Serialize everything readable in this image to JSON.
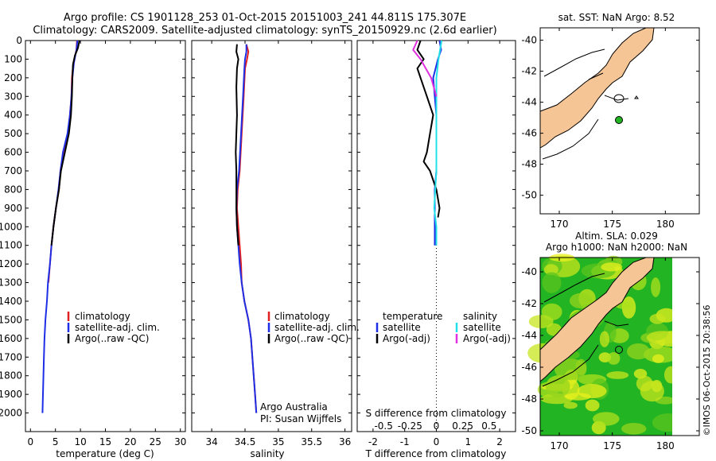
{
  "header": {
    "line1": "Argo profile: CS 1901128_253 01-Oct-2015 20151003_241 44.811S 175.307E",
    "line2": "Climatology: CARS2009. Satellite-adjusted climatology: synTS_20150929.nc (2.6d earlier)"
  },
  "colors": {
    "climatology": "#e02020",
    "satellite": "#1e2ee6",
    "argo": "#000000",
    "satellite_salinity": "#22e0e8",
    "argo_salinity": "#e030e0",
    "land": "#f5c596",
    "sea_surface": "#22b422"
  },
  "legend": {
    "climatology": "climatology",
    "satellite_clim": "satellite-adj. clim.",
    "argo_raw": "Argo(..raw -QC)",
    "temperature": "temperature",
    "salinity": "salinity",
    "satellite": "satellite",
    "argo_adj": "Argo(-adj)"
  },
  "credits": {
    "line1": "Argo Australia",
    "line2": "PI: Susan Wijffels",
    "imos": "©IMOS 06-Oct-2015 20:38:56"
  },
  "maps": {
    "sst_title": "sat. SST: NaN Argo: 8.52",
    "sla_title1": "Altim. SLA: 0.029",
    "sla_title2": "Argo h1000: NaN h2000: NaN",
    "lat_ticks": [
      "-40",
      "-42",
      "-44",
      "-46",
      "-48",
      "-50"
    ],
    "lon_ticks": [
      "170",
      "175",
      "180"
    ],
    "float_position": {
      "lon": 175.307,
      "lat": -44.811
    }
  },
  "chart_data": [
    {
      "type": "line",
      "xlabel": "temperature (deg C)",
      "ylabel": "",
      "xlim": [
        -1,
        31
      ],
      "ylim": [
        2100,
        0
      ],
      "xticks": [
        "0",
        "5",
        "10",
        "15",
        "20",
        "25",
        "30"
      ],
      "yticks": [
        "0",
        "100",
        "200",
        "300",
        "400",
        "500",
        "600",
        "700",
        "800",
        "900",
        "1000",
        "1100",
        "1200",
        "1300",
        "1400",
        "1500",
        "1600",
        "1700",
        "1800",
        "1900",
        "2000"
      ],
      "series": [
        {
          "name": "climatology",
          "color": "#e02020",
          "points": [
            [
              9.3,
              0
            ],
            [
              9.2,
              50
            ],
            [
              8.6,
              120
            ],
            [
              8.3,
              200
            ],
            [
              8.2,
              300
            ],
            [
              7.9,
              400
            ],
            [
              7.5,
              500
            ],
            [
              6.6,
              600
            ],
            [
              6.0,
              700
            ],
            [
              5.7,
              800
            ],
            [
              5.1,
              900
            ],
            [
              4.6,
              1000
            ],
            [
              4.2,
              1100
            ],
            [
              3.9,
              1200
            ],
            [
              3.6,
              1300
            ]
          ]
        },
        {
          "name": "satellite-adj. clim.",
          "color": "#1e2ee6",
          "points": [
            [
              9.4,
              0
            ],
            [
              9.2,
              50
            ],
            [
              8.7,
              120
            ],
            [
              8.4,
              200
            ],
            [
              8.2,
              300
            ],
            [
              7.9,
              400
            ],
            [
              7.4,
              500
            ],
            [
              6.5,
              600
            ],
            [
              6.0,
              700
            ],
            [
              5.6,
              800
            ],
            [
              5.1,
              900
            ],
            [
              4.6,
              1000
            ],
            [
              4.2,
              1100
            ],
            [
              3.9,
              1200
            ],
            [
              3.5,
              1300
            ],
            [
              3.3,
              1400
            ],
            [
              3.0,
              1500
            ],
            [
              2.8,
              1600
            ],
            [
              2.7,
              1700
            ],
            [
              2.6,
              1800
            ],
            [
              2.5,
              1900
            ],
            [
              2.4,
              2000
            ]
          ]
        },
        {
          "name": "Argo(..raw -QC)",
          "color": "#000000",
          "points": [
            [
              9.8,
              0
            ],
            [
              9.5,
              40
            ],
            [
              8.9,
              80
            ],
            [
              8.5,
              130
            ],
            [
              8.4,
              200
            ],
            [
              8.3,
              300
            ],
            [
              8.1,
              400
            ],
            [
              7.7,
              500
            ],
            [
              6.9,
              600
            ],
            [
              6.1,
              700
            ],
            [
              5.7,
              800
            ],
            [
              5.1,
              900
            ],
            [
              4.6,
              1000
            ],
            [
              4.2,
              1100
            ]
          ]
        }
      ]
    },
    {
      "type": "line",
      "xlabel": "salinity",
      "ylabel": "",
      "xlim": [
        33.7,
        36.1
      ],
      "ylim": [
        2100,
        0
      ],
      "xticks": [
        "34",
        "34.5",
        "35",
        "35.5",
        "36"
      ],
      "series": [
        {
          "name": "climatology",
          "color": "#e02020",
          "points": [
            [
              34.52,
              20
            ],
            [
              34.55,
              60
            ],
            [
              34.53,
              100
            ],
            [
              34.5,
              150
            ],
            [
              34.48,
              300
            ],
            [
              34.45,
              500
            ],
            [
              34.42,
              700
            ],
            [
              34.39,
              800
            ],
            [
              34.38,
              900
            ],
            [
              34.4,
              1000
            ],
            [
              34.42,
              1100
            ],
            [
              34.44,
              1200
            ],
            [
              34.45,
              1300
            ],
            [
              34.49,
              1400
            ],
            [
              34.55,
              1500
            ],
            [
              34.59,
              1600
            ],
            [
              34.61,
              1700
            ],
            [
              34.63,
              1800
            ],
            [
              34.65,
              1900
            ],
            [
              34.67,
              2000
            ]
          ]
        },
        {
          "name": "satellite-adj. clim.",
          "color": "#1e2ee6",
          "points": [
            [
              34.52,
              20
            ],
            [
              34.52,
              60
            ],
            [
              34.5,
              100
            ],
            [
              34.49,
              150
            ],
            [
              34.47,
              300
            ],
            [
              34.44,
              500
            ],
            [
              34.41,
              700
            ],
            [
              34.38,
              800
            ],
            [
              34.37,
              900
            ],
            [
              34.38,
              1000
            ],
            [
              34.4,
              1100
            ],
            [
              34.42,
              1200
            ],
            [
              34.45,
              1300
            ],
            [
              34.49,
              1400
            ],
            [
              34.55,
              1500
            ],
            [
              34.59,
              1600
            ],
            [
              34.61,
              1700
            ],
            [
              34.63,
              1800
            ],
            [
              34.65,
              1900
            ],
            [
              34.67,
              2000
            ]
          ]
        },
        {
          "name": "Argo(..raw -QC)",
          "color": "#000000",
          "points": [
            [
              34.38,
              20
            ],
            [
              34.37,
              60
            ],
            [
              34.4,
              100
            ],
            [
              34.38,
              150
            ],
            [
              34.37,
              250
            ],
            [
              34.38,
              400
            ],
            [
              34.37,
              500
            ],
            [
              34.36,
              600
            ],
            [
              34.37,
              700
            ],
            [
              34.37,
              800
            ],
            [
              34.37,
              900
            ],
            [
              34.38,
              1000
            ],
            [
              34.4,
              1100
            ]
          ]
        }
      ]
    },
    {
      "type": "line",
      "xlabel": "T difference from climatology",
      "xlabel_top": "S difference from climatology",
      "ylabel": "",
      "xlim": [
        -2.5,
        2.5
      ],
      "xlim_salinity": [
        -0.75,
        0.75
      ],
      "ylim": [
        2100,
        0
      ],
      "xticks": [
        "-2",
        "-1",
        "0",
        "1",
        "2"
      ],
      "xticks_salinity": [
        "-0.5",
        "-0.25",
        "0",
        "0.25",
        "0.5"
      ],
      "series": [
        {
          "name": "temperature satellite",
          "color": "#1e2ee6",
          "points": [
            [
              0.1,
              0
            ],
            [
              0.15,
              50
            ],
            [
              0.05,
              100
            ],
            [
              -0.1,
              200
            ],
            [
              -0.05,
              300
            ],
            [
              0.0,
              400
            ],
            [
              0.0,
              500
            ],
            [
              0.0,
              600
            ],
            [
              0.0,
              700
            ],
            [
              -0.05,
              800
            ],
            [
              -0.05,
              900
            ],
            [
              -0.05,
              1000
            ],
            [
              -0.05,
              1100
            ]
          ]
        },
        {
          "name": "temperature Argo(-adj)",
          "color": "#000000",
          "points": [
            [
              -0.5,
              0
            ],
            [
              -0.6,
              50
            ],
            [
              -0.4,
              100
            ],
            [
              -0.6,
              150
            ],
            [
              -0.5,
              200
            ],
            [
              -0.3,
              300
            ],
            [
              -0.1,
              400
            ],
            [
              -0.2,
              500
            ],
            [
              -0.3,
              600
            ],
            [
              -0.4,
              650
            ],
            [
              -0.2,
              700
            ],
            [
              0.0,
              800
            ],
            [
              0.05,
              850
            ],
            [
              0.1,
              900
            ],
            [
              0.05,
              950
            ]
          ]
        },
        {
          "name": "salinity satellite",
          "color": "#22e0e8",
          "points": [
            [
              0.05,
              0
            ],
            [
              0.02,
              100
            ],
            [
              0.0,
              200
            ],
            [
              0.0,
              500
            ],
            [
              0.0,
              700
            ],
            [
              -0.02,
              900
            ],
            [
              0.0,
              1000
            ],
            [
              0.0,
              1100
            ]
          ]
        },
        {
          "name": "salinity Argo(-adj)",
          "color": "#e030e0",
          "points": [
            [
              -0.18,
              0
            ],
            [
              -0.22,
              50
            ],
            [
              -0.15,
              100
            ],
            [
              -0.1,
              150
            ],
            [
              -0.05,
              200
            ],
            [
              0.0,
              300
            ]
          ]
        }
      ]
    }
  ]
}
